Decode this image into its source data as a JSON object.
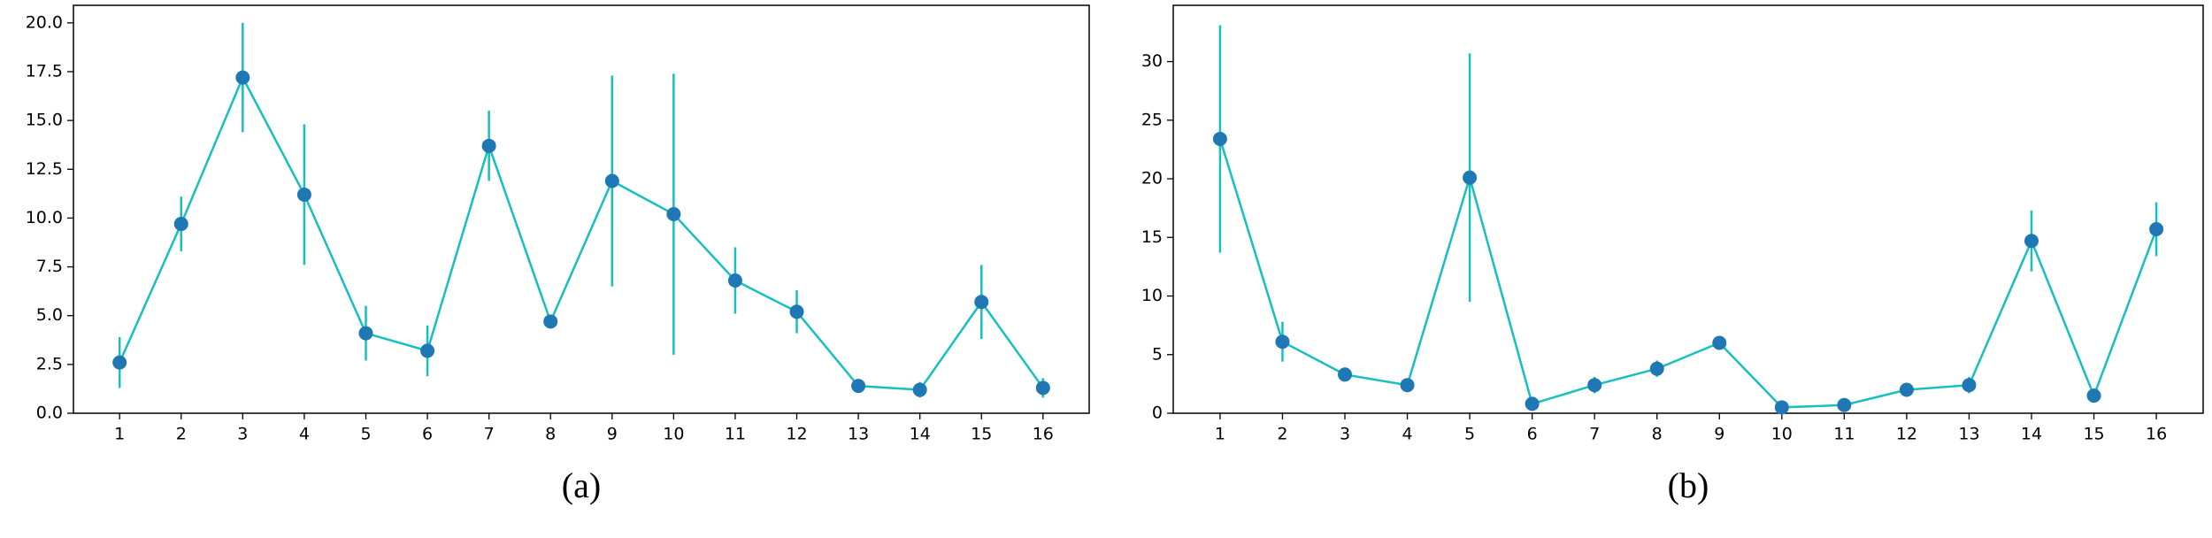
{
  "chart_data": [
    {
      "type": "line",
      "caption": "(a)",
      "x": [
        1,
        2,
        3,
        4,
        5,
        6,
        7,
        8,
        9,
        10,
        11,
        12,
        13,
        14,
        15,
        16
      ],
      "values": [
        2.6,
        9.7,
        17.2,
        11.2,
        4.1,
        3.2,
        13.7,
        4.7,
        11.9,
        10.2,
        6.8,
        5.2,
        1.4,
        1.2,
        5.7,
        1.3
      ],
      "errors": [
        1.3,
        1.4,
        2.8,
        3.6,
        1.4,
        1.3,
        1.8,
        0.3,
        5.4,
        7.2,
        1.7,
        1.1,
        0.3,
        0.4,
        1.9,
        0.5
      ],
      "line_color": "#17bfbf",
      "marker_color": "#1f77b4",
      "xlim": [
        0.25,
        16.75
      ],
      "xticks": [
        1,
        2,
        3,
        4,
        5,
        6,
        7,
        8,
        9,
        10,
        11,
        12,
        13,
        14,
        15,
        16
      ],
      "ylim": [
        0,
        20.9
      ],
      "yticks": [
        {
          "value": 0,
          "label": "0.0"
        },
        2.5,
        {
          "value": 5,
          "label": "5.0"
        },
        7.5,
        {
          "value": 10,
          "label": "10.0"
        },
        12.5,
        {
          "value": 15,
          "label": "15.0"
        },
        17.5,
        {
          "value": 20,
          "label": "20.0"
        }
      ]
    },
    {
      "type": "line",
      "caption": "(b)",
      "x": [
        1,
        2,
        3,
        4,
        5,
        6,
        7,
        8,
        9,
        10,
        11,
        12,
        13,
        14,
        15,
        16
      ],
      "values": [
        23.4,
        6.1,
        3.3,
        2.4,
        20.1,
        0.8,
        2.4,
        3.8,
        6.0,
        0.5,
        0.7,
        2.0,
        2.4,
        14.7,
        1.5,
        15.7
      ],
      "errors": [
        9.7,
        1.7,
        0.6,
        0.5,
        10.6,
        0.3,
        0.7,
        0.7,
        0.5,
        0.1,
        0.1,
        0.5,
        0.7,
        2.6,
        0.6,
        2.3
      ],
      "line_color": "#17bfbf",
      "marker_color": "#1f77b4",
      "xlim": [
        0.25,
        16.75
      ],
      "xticks": [
        1,
        2,
        3,
        4,
        5,
        6,
        7,
        8,
        9,
        10,
        11,
        12,
        13,
        14,
        15,
        16
      ],
      "ylim": [
        0,
        34.8
      ],
      "yticks": [
        0,
        5,
        10,
        15,
        20,
        25,
        30
      ]
    }
  ]
}
